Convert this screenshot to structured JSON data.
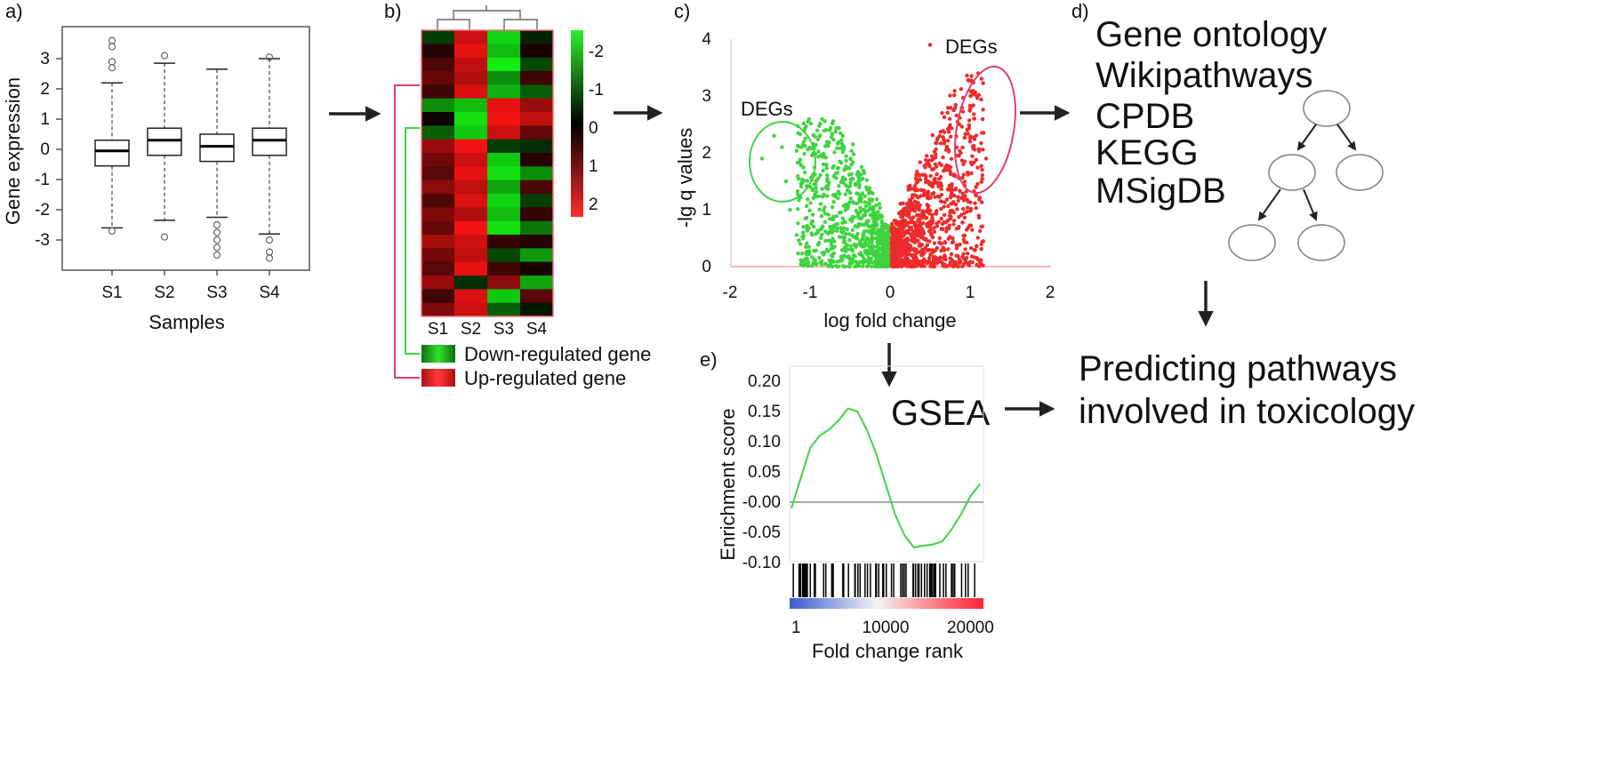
{
  "colors": {
    "up": "#ec2c2c",
    "down": "#3fd43f",
    "upline": "#e0406a",
    "arrow": "#222222",
    "grey": "#808080"
  },
  "panel_a": {
    "label": "a)",
    "chart_data": {
      "type": "box",
      "categories": [
        "S1",
        "S2",
        "S3",
        "S4"
      ],
      "xlabel": "Samples",
      "ylabel": "Gene expression",
      "yticks": [
        "3",
        "2",
        "1",
        "0",
        "-1",
        "-2",
        "-3"
      ],
      "ylim": [
        -3.8,
        4.0
      ],
      "boxes": [
        {
          "name": "S1",
          "q1": -0.55,
          "median": -0.05,
          "q3": 0.3,
          "whisker_low": -2.6,
          "whisker_high": 2.2,
          "outliers": [
            3.6,
            3.4,
            2.9,
            2.7,
            -2.7
          ]
        },
        {
          "name": "S2",
          "q1": -0.2,
          "median": 0.3,
          "q3": 0.7,
          "whisker_low": -2.35,
          "whisker_high": 2.85,
          "outliers": [
            3.1,
            -2.9
          ]
        },
        {
          "name": "S3",
          "q1": -0.4,
          "median": 0.1,
          "q3": 0.5,
          "whisker_low": -2.25,
          "whisker_high": 2.65,
          "outliers": [
            -2.5,
            -2.75,
            -3.0,
            -3.25,
            -3.5
          ]
        },
        {
          "name": "S4",
          "q1": -0.2,
          "median": 0.3,
          "q3": 0.7,
          "whisker_low": -2.8,
          "whisker_high": 3.0,
          "outliers": [
            3.05,
            -3.0,
            -3.4,
            -3.6
          ]
        }
      ]
    }
  },
  "panel_b": {
    "label": "b)",
    "chart_data": {
      "type": "heatmap",
      "columns": [
        "S1",
        "S2",
        "S3",
        "S4"
      ],
      "scale_ticks": [
        "-2",
        "-1",
        "0",
        "1",
        "2"
      ],
      "values": [
        [
          -0.5,
          1.6,
          -1.8,
          -0.3
        ],
        [
          0.3,
          1.8,
          -1.6,
          0.2
        ],
        [
          0.6,
          1.5,
          -2.0,
          -0.6
        ],
        [
          0.8,
          1.4,
          -1.2,
          0.5
        ],
        [
          0.5,
          1.7,
          -1.5,
          -0.8
        ],
        [
          -1.2,
          -1.6,
          1.8,
          1.2
        ],
        [
          0.1,
          -1.9,
          1.9,
          1.5
        ],
        [
          -0.8,
          -1.7,
          1.6,
          0.8
        ],
        [
          1.2,
          1.9,
          -0.5,
          -0.4
        ],
        [
          0.9,
          1.6,
          -1.7,
          0.3
        ],
        [
          0.7,
          1.8,
          -1.9,
          -1.2
        ],
        [
          1.1,
          1.5,
          -1.4,
          0.6
        ],
        [
          0.6,
          1.7,
          -1.8,
          -0.5
        ],
        [
          1.0,
          1.4,
          -1.6,
          0.4
        ],
        [
          0.8,
          1.9,
          -1.9,
          -1.0
        ],
        [
          1.3,
          1.6,
          0.4,
          0.3
        ],
        [
          0.9,
          1.5,
          -0.6,
          -1.3
        ],
        [
          0.7,
          1.8,
          0.5,
          0.2
        ],
        [
          1.2,
          -0.4,
          1.1,
          -1.4
        ],
        [
          0.5,
          1.7,
          -1.7,
          0.7
        ],
        [
          1.0,
          1.6,
          -0.8,
          -0.2
        ]
      ]
    },
    "legend": {
      "down": "Down-regulated gene",
      "up": "Up-regulated gene"
    }
  },
  "panel_c": {
    "label": "c)",
    "chart_data": {
      "type": "scatter",
      "xlabel": "log fold change",
      "ylabel": "-lg q values",
      "xlim": [
        -2,
        2
      ],
      "ylim": [
        0,
        4
      ],
      "xticks": [
        "-2",
        "-1",
        "0",
        "1",
        "2"
      ],
      "yticks": [
        "4",
        "3",
        "2",
        "1",
        "0"
      ],
      "series": [
        {
          "color": "down",
          "x_range": [
            -1.3,
            0
          ],
          "y_max": 2.8
        },
        {
          "color": "up",
          "x_range": [
            0,
            1.3
          ],
          "y_max": 3.9
        }
      ],
      "annotations": [
        "DEGs",
        "DEGs"
      ]
    }
  },
  "panel_d": {
    "label": "d)",
    "databases": [
      "Gene ontology",
      "Wikipathways",
      "CPDB",
      "KEGG",
      "MSigDB"
    ],
    "result_line1": "Predicting pathways",
    "result_line2": "involved in toxicology"
  },
  "panel_e": {
    "label": "e)",
    "title": "GSEA",
    "chart_data": {
      "type": "line",
      "xlabel": "Fold change rank",
      "ylabel": "Enrichment score",
      "ylim": [
        -0.1,
        0.2
      ],
      "yticks": [
        "0.20",
        "0.15",
        "0.10",
        "0.05",
        "-0.00",
        "-0.05",
        "-0.10"
      ],
      "xticks": [
        "1",
        "10000",
        "20000"
      ],
      "x": [
        0,
        1000,
        2000,
        3000,
        4000,
        5000,
        6000,
        7000,
        8000,
        9000,
        10000,
        11000,
        12000,
        13000,
        14000,
        15000,
        16000,
        17000,
        18000,
        19000,
        20000
      ],
      "values": [
        -0.01,
        0.04,
        0.09,
        0.11,
        0.12,
        0.135,
        0.155,
        0.15,
        0.12,
        0.08,
        0.03,
        -0.02,
        -0.055,
        -0.075,
        -0.072,
        -0.07,
        -0.065,
        -0.045,
        -0.02,
        0.01,
        0.03
      ]
    }
  }
}
